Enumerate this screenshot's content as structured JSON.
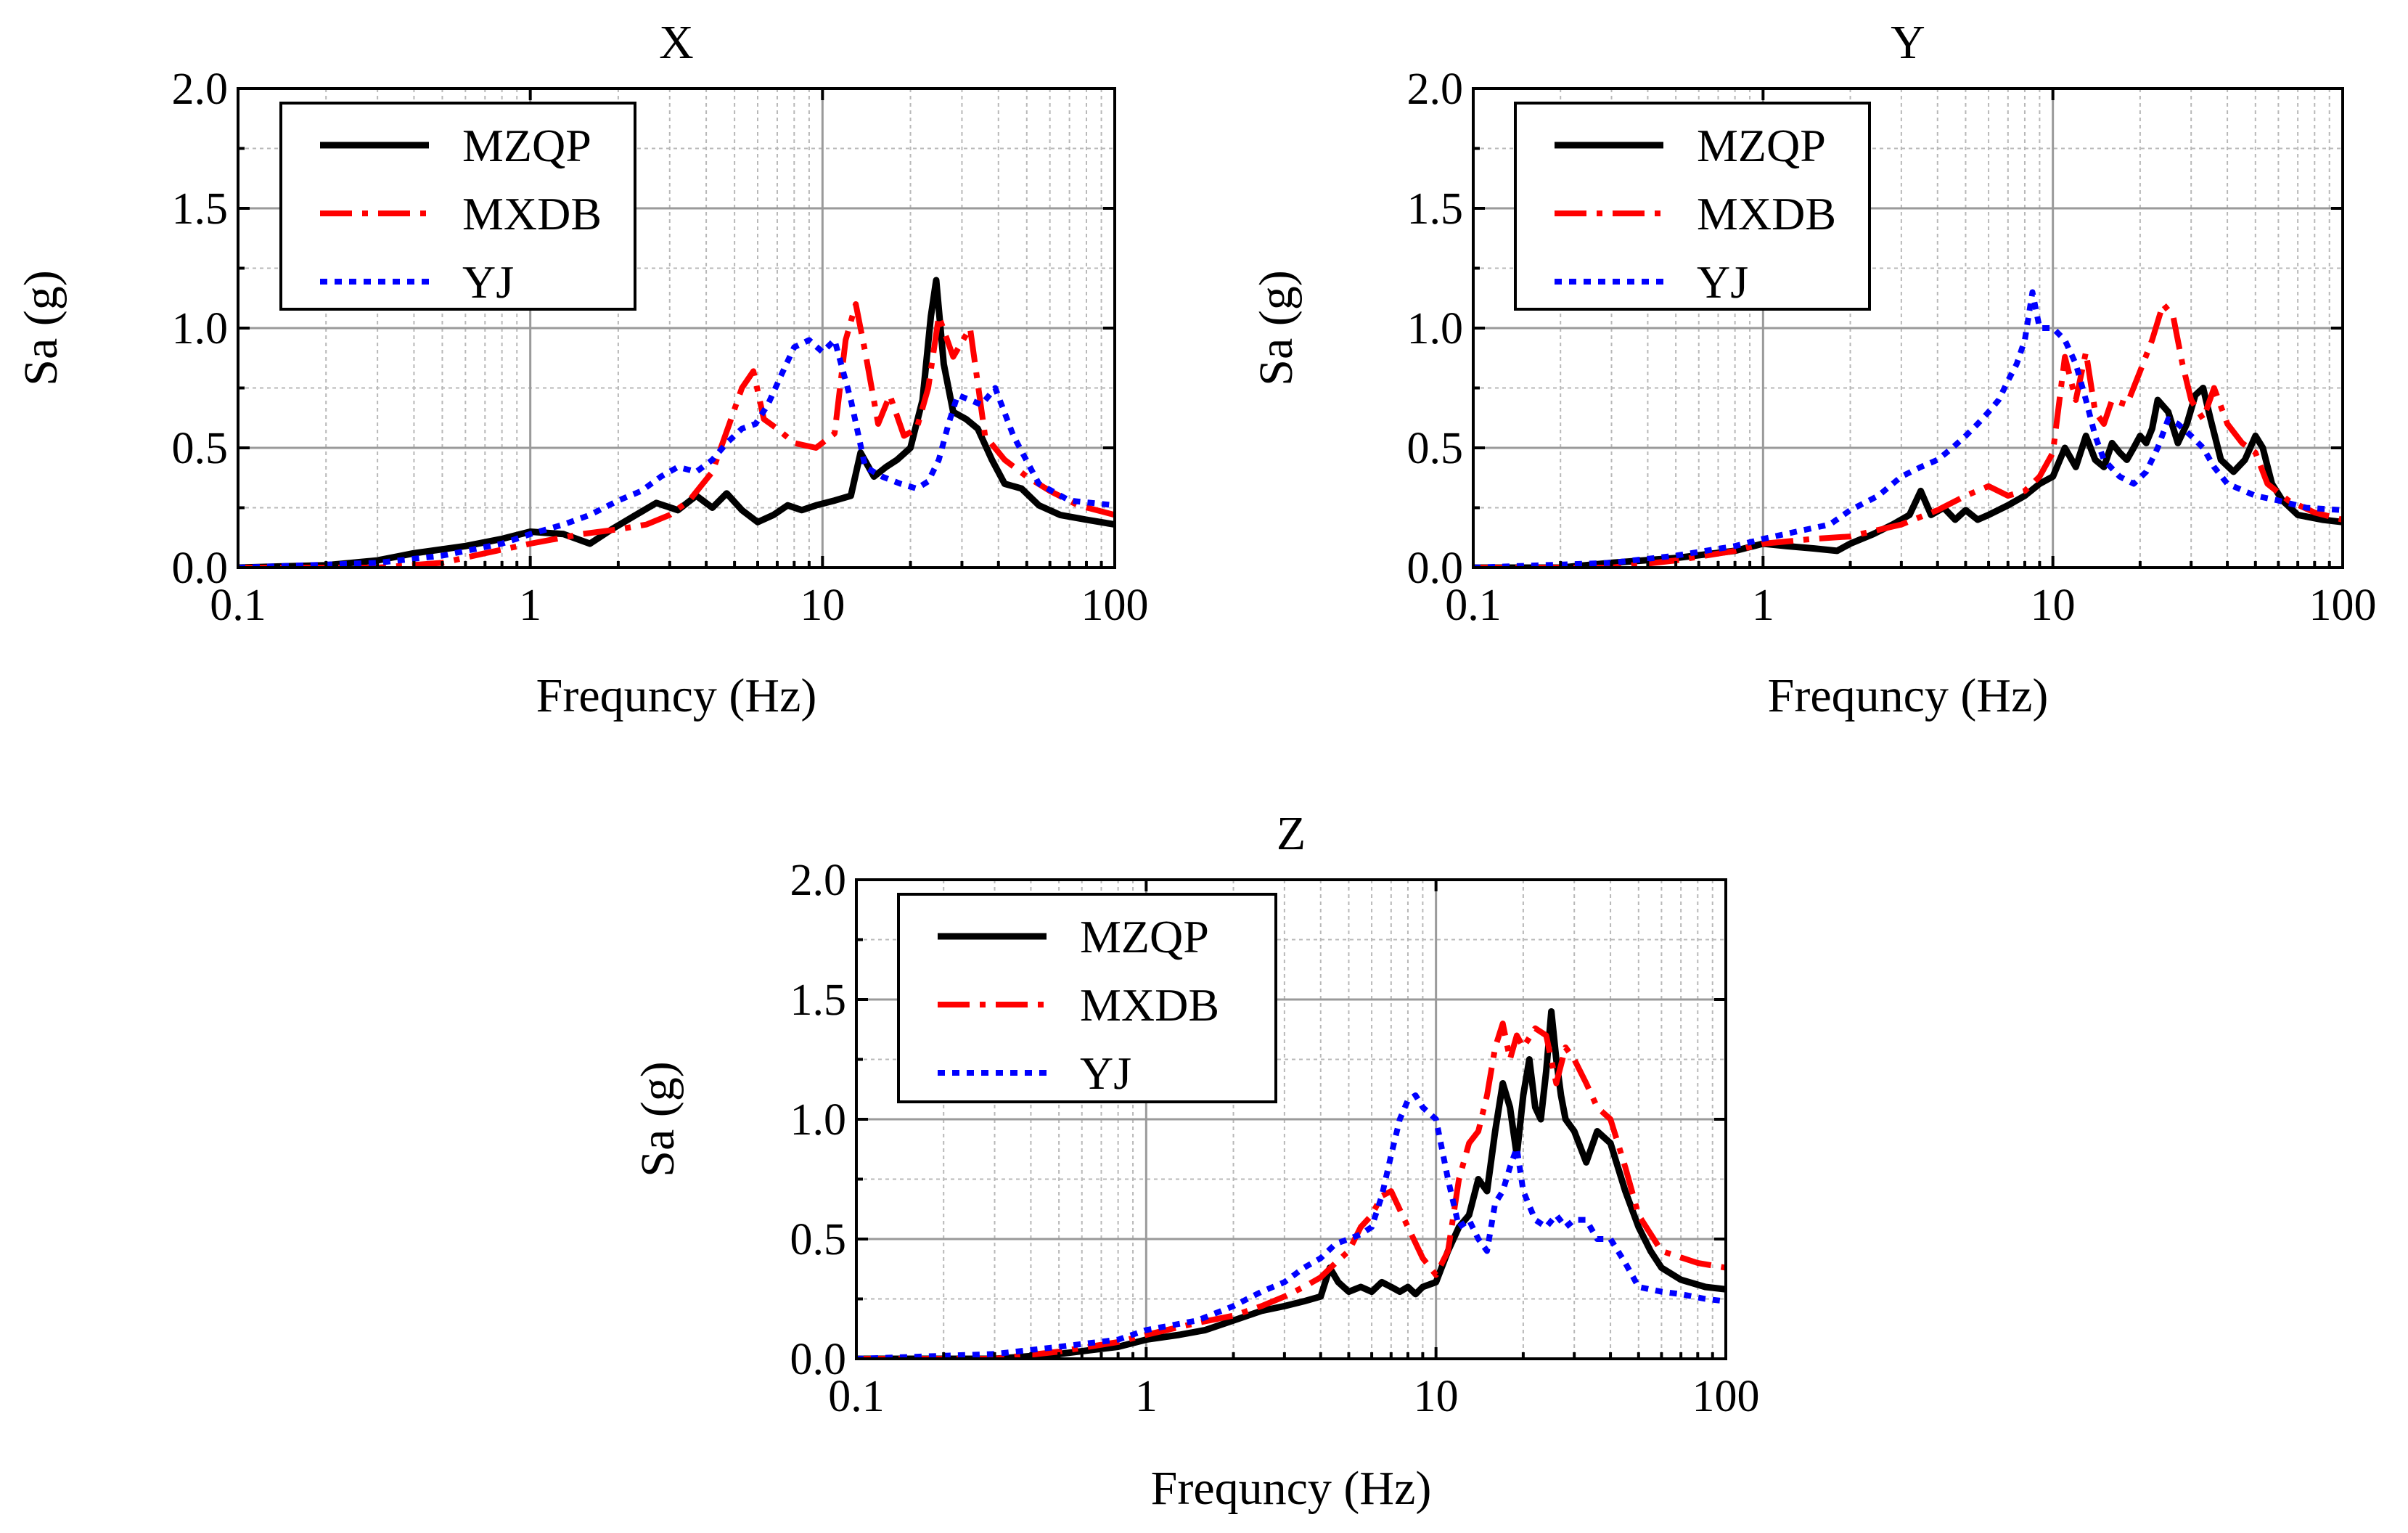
{
  "colors": {
    "MZQP": "#000000",
    "MXDB": "#ff0000",
    "YJ": "#0000ff"
  },
  "chart_data": [
    {
      "type": "line",
      "title": "X",
      "xlabel": "Frequncy (Hz)",
      "ylabel": "Sa (g)",
      "xscale": "log",
      "xlim": [
        0.1,
        100
      ],
      "ylim": [
        0,
        2.0
      ],
      "xticks": [
        "0.1",
        "1",
        "10",
        "100"
      ],
      "yticks": [
        "0.0",
        "0.5",
        "1.0",
        "1.5",
        "2.0"
      ],
      "grid": true,
      "legend": "top-left",
      "series": [
        {
          "name": "MZQP",
          "style": "solid",
          "x": [
            0.1,
            0.2,
            0.3,
            0.4,
            0.6,
            0.8,
            1.0,
            1.3,
            1.6,
            1.9,
            2.3,
            2.7,
            3.2,
            3.7,
            4.2,
            4.7,
            5.3,
            6.0,
            6.8,
            7.6,
            8.5,
            9.5,
            11,
            12.5,
            13.5,
            15,
            16.5,
            18,
            20,
            22,
            23.5,
            24.5,
            26,
            28,
            31,
            34,
            38,
            42,
            48,
            55,
            65,
            80,
            100
          ],
          "y": [
            0.0,
            0.01,
            0.03,
            0.06,
            0.09,
            0.12,
            0.15,
            0.14,
            0.1,
            0.16,
            0.22,
            0.27,
            0.24,
            0.3,
            0.25,
            0.31,
            0.24,
            0.19,
            0.22,
            0.26,
            0.24,
            0.26,
            0.28,
            0.3,
            0.48,
            0.38,
            0.42,
            0.45,
            0.5,
            0.7,
            1.05,
            1.2,
            0.85,
            0.65,
            0.62,
            0.58,
            0.45,
            0.35,
            0.33,
            0.26,
            0.22,
            0.2,
            0.18
          ]
        },
        {
          "name": "MXDB",
          "style": "dashdot",
          "x": [
            0.1,
            0.3,
            0.5,
            0.7,
            1.0,
            1.5,
            2.0,
            2.5,
            3.0,
            3.5,
            4.2,
            4.8,
            5.3,
            5.8,
            6.3,
            7.0,
            8.0,
            9.5,
            11,
            12,
            13,
            14,
            15.5,
            17,
            19,
            21,
            23,
            25,
            28,
            32,
            36,
            42,
            50,
            60,
            75,
            100
          ],
          "y": [
            0.0,
            0.0,
            0.02,
            0.06,
            0.1,
            0.14,
            0.16,
            0.18,
            0.22,
            0.28,
            0.4,
            0.6,
            0.75,
            0.82,
            0.62,
            0.58,
            0.52,
            0.5,
            0.56,
            0.95,
            1.1,
            0.9,
            0.6,
            0.72,
            0.55,
            0.58,
            0.75,
            1.05,
            0.88,
            1.0,
            0.55,
            0.45,
            0.38,
            0.32,
            0.26,
            0.22
          ]
        },
        {
          "name": "YJ",
          "style": "dotted",
          "x": [
            0.1,
            0.3,
            0.5,
            0.8,
            1.0,
            1.3,
            1.6,
            2.0,
            2.4,
            2.8,
            3.2,
            3.7,
            4.2,
            4.7,
            5.3,
            5.9,
            6.5,
            7.2,
            8.0,
            9.0,
            10,
            11,
            12.5,
            14,
            16,
            18.5,
            21,
            23,
            25,
            27,
            29,
            32,
            35,
            39,
            45,
            55,
            70,
            100
          ],
          "y": [
            0.0,
            0.02,
            0.05,
            0.1,
            0.14,
            0.18,
            0.22,
            0.28,
            0.32,
            0.38,
            0.42,
            0.4,
            0.45,
            0.52,
            0.58,
            0.6,
            0.68,
            0.8,
            0.92,
            0.95,
            0.9,
            0.95,
            0.7,
            0.42,
            0.38,
            0.35,
            0.33,
            0.36,
            0.45,
            0.6,
            0.72,
            0.7,
            0.68,
            0.75,
            0.55,
            0.35,
            0.28,
            0.26
          ]
        }
      ]
    },
    {
      "type": "line",
      "title": "Y",
      "xlabel": "Frequncy (Hz)",
      "ylabel": "Sa (g)",
      "xscale": "log",
      "xlim": [
        0.1,
        100
      ],
      "ylim": [
        0,
        2.0
      ],
      "xticks": [
        "0.1",
        "1",
        "10",
        "100"
      ],
      "yticks": [
        "0.0",
        "0.5",
        "1.0",
        "1.5",
        "2.0"
      ],
      "grid": true,
      "legend": "top-left",
      "series": [
        {
          "name": "MZQP",
          "style": "solid",
          "x": [
            0.1,
            0.2,
            0.3,
            0.5,
            0.8,
            1.0,
            1.2,
            1.5,
            1.8,
            2.0,
            2.4,
            2.8,
            3.2,
            3.5,
            3.8,
            4.2,
            4.6,
            5.0,
            5.5,
            6.0,
            7.0,
            8.0,
            9.0,
            10,
            11,
            12,
            13,
            14,
            15,
            16,
            17,
            18,
            19,
            20,
            21,
            22,
            23,
            25,
            27,
            29,
            31,
            33,
            35,
            38,
            42,
            46,
            50,
            53,
            57,
            62,
            70,
            85,
            100
          ],
          "y": [
            0.0,
            0.0,
            0.02,
            0.04,
            0.07,
            0.1,
            0.09,
            0.08,
            0.07,
            0.1,
            0.14,
            0.18,
            0.22,
            0.32,
            0.22,
            0.25,
            0.2,
            0.24,
            0.2,
            0.22,
            0.26,
            0.3,
            0.35,
            0.38,
            0.5,
            0.42,
            0.55,
            0.45,
            0.42,
            0.52,
            0.48,
            0.45,
            0.5,
            0.55,
            0.52,
            0.58,
            0.7,
            0.65,
            0.52,
            0.6,
            0.72,
            0.75,
            0.62,
            0.45,
            0.4,
            0.45,
            0.55,
            0.5,
            0.35,
            0.28,
            0.22,
            0.2,
            0.19
          ]
        },
        {
          "name": "MXDB",
          "style": "dashdot",
          "x": [
            0.1,
            0.3,
            0.5,
            0.8,
            1.0,
            1.5,
            2.0,
            3.0,
            4.0,
            5.0,
            6.0,
            7.0,
            8.0,
            9.0,
            10,
            11,
            12,
            13,
            14,
            15,
            16,
            18,
            20,
            22,
            24,
            26,
            28,
            30,
            33,
            36,
            40,
            45,
            50,
            55,
            65,
            80,
            100
          ],
          "y": [
            0.0,
            0.0,
            0.03,
            0.07,
            0.1,
            0.12,
            0.13,
            0.18,
            0.24,
            0.3,
            0.34,
            0.3,
            0.32,
            0.38,
            0.48,
            0.88,
            0.7,
            0.9,
            0.65,
            0.6,
            0.7,
            0.68,
            0.82,
            0.95,
            1.1,
            1.05,
            0.85,
            0.7,
            0.62,
            0.75,
            0.6,
            0.52,
            0.48,
            0.35,
            0.28,
            0.23,
            0.2
          ]
        },
        {
          "name": "YJ",
          "style": "dotted",
          "x": [
            0.1,
            0.3,
            0.5,
            0.8,
            1.0,
            1.3,
            1.7,
            2.0,
            2.5,
            3.0,
            3.5,
            4.0,
            4.5,
            5.0,
            5.5,
            6.0,
            6.5,
            7.0,
            7.5,
            8.0,
            8.5,
            9.0,
            10,
            11,
            12,
            13,
            14,
            15,
            17,
            19,
            21,
            23,
            25,
            27,
            30,
            33,
            36,
            40,
            50,
            60,
            75,
            100
          ],
          "y": [
            0.0,
            0.02,
            0.05,
            0.09,
            0.12,
            0.15,
            0.18,
            0.24,
            0.3,
            0.38,
            0.42,
            0.45,
            0.5,
            0.55,
            0.6,
            0.65,
            0.7,
            0.78,
            0.85,
            0.95,
            1.15,
            1.0,
            1.0,
            0.95,
            0.85,
            0.7,
            0.55,
            0.45,
            0.38,
            0.35,
            0.4,
            0.5,
            0.62,
            0.6,
            0.55,
            0.5,
            0.42,
            0.35,
            0.3,
            0.28,
            0.25,
            0.24
          ]
        }
      ]
    },
    {
      "type": "line",
      "title": "Z",
      "xlabel": "Frequncy (Hz)",
      "ylabel": "Sa (g)",
      "xscale": "log",
      "xlim": [
        0.1,
        100
      ],
      "ylim": [
        0,
        2.0
      ],
      "xticks": [
        "0.1",
        "1",
        "10",
        "100"
      ],
      "yticks": [
        "0.0",
        "0.5",
        "1.0",
        "1.5",
        "2.0"
      ],
      "grid": true,
      "legend": "top-left",
      "series": [
        {
          "name": "MZQP",
          "style": "solid",
          "x": [
            0.1,
            0.3,
            0.5,
            0.8,
            1.0,
            1.3,
            1.6,
            2.0,
            2.5,
            3.0,
            3.5,
            4.0,
            4.3,
            4.6,
            5.0,
            5.5,
            6.0,
            6.5,
            7.0,
            7.5,
            8.0,
            8.5,
            9.0,
            10,
            11,
            12,
            13,
            14,
            15,
            16,
            17,
            18,
            19,
            20,
            21,
            22,
            23,
            24,
            25,
            26,
            27,
            28,
            30,
            33,
            36,
            40,
            45,
            50,
            55,
            60,
            70,
            85,
            100
          ],
          "y": [
            0.0,
            0.0,
            0.02,
            0.05,
            0.08,
            0.1,
            0.12,
            0.16,
            0.2,
            0.22,
            0.24,
            0.26,
            0.38,
            0.32,
            0.28,
            0.3,
            0.28,
            0.32,
            0.3,
            0.28,
            0.3,
            0.27,
            0.3,
            0.32,
            0.45,
            0.55,
            0.6,
            0.75,
            0.7,
            0.95,
            1.15,
            1.05,
            0.85,
            1.1,
            1.25,
            1.05,
            1.0,
            1.2,
            1.45,
            1.25,
            1.1,
            1.0,
            0.95,
            0.82,
            0.95,
            0.9,
            0.7,
            0.55,
            0.45,
            0.38,
            0.33,
            0.3,
            0.29
          ]
        },
        {
          "name": "MXDB",
          "style": "dashdot",
          "x": [
            0.1,
            0.3,
            0.5,
            0.8,
            1.0,
            1.5,
            2.0,
            2.5,
            3.0,
            3.5,
            4.0,
            4.5,
            5.0,
            5.5,
            6.0,
            6.5,
            7.0,
            8.0,
            9.0,
            10,
            11,
            12,
            13,
            14,
            15,
            16,
            17,
            18,
            19,
            20,
            22,
            24,
            26,
            28,
            30,
            33,
            36,
            40,
            45,
            50,
            60,
            80,
            100
          ],
          "y": [
            0.0,
            0.0,
            0.03,
            0.07,
            0.1,
            0.15,
            0.18,
            0.22,
            0.26,
            0.3,
            0.34,
            0.4,
            0.45,
            0.55,
            0.6,
            0.68,
            0.7,
            0.55,
            0.42,
            0.35,
            0.45,
            0.75,
            0.9,
            0.95,
            1.1,
            1.3,
            1.4,
            1.25,
            1.35,
            1.3,
            1.38,
            1.35,
            1.15,
            1.3,
            1.25,
            1.15,
            1.05,
            1.0,
            0.8,
            0.6,
            0.45,
            0.4,
            0.38
          ]
        },
        {
          "name": "YJ",
          "style": "dotted",
          "x": [
            0.1,
            0.3,
            0.5,
            0.8,
            1.0,
            1.5,
            2.0,
            2.5,
            3.0,
            3.5,
            4.0,
            4.5,
            5.0,
            5.5,
            6.0,
            6.5,
            7.0,
            7.5,
            8.0,
            8.5,
            9.0,
            10,
            11,
            12,
            13,
            14,
            15,
            16,
            17,
            18,
            19,
            20,
            22,
            24,
            26,
            28,
            30,
            33,
            36,
            40,
            45,
            50,
            60,
            70,
            85,
            100
          ],
          "y": [
            0.0,
            0.02,
            0.05,
            0.08,
            0.12,
            0.16,
            0.22,
            0.28,
            0.32,
            0.38,
            0.42,
            0.48,
            0.5,
            0.52,
            0.55,
            0.68,
            0.85,
            1.0,
            1.08,
            1.1,
            1.05,
            1.0,
            0.75,
            0.55,
            0.58,
            0.5,
            0.45,
            0.65,
            0.7,
            0.8,
            0.88,
            0.7,
            0.58,
            0.55,
            0.6,
            0.55,
            0.58,
            0.58,
            0.5,
            0.5,
            0.4,
            0.3,
            0.28,
            0.27,
            0.25,
            0.24
          ]
        }
      ]
    }
  ]
}
